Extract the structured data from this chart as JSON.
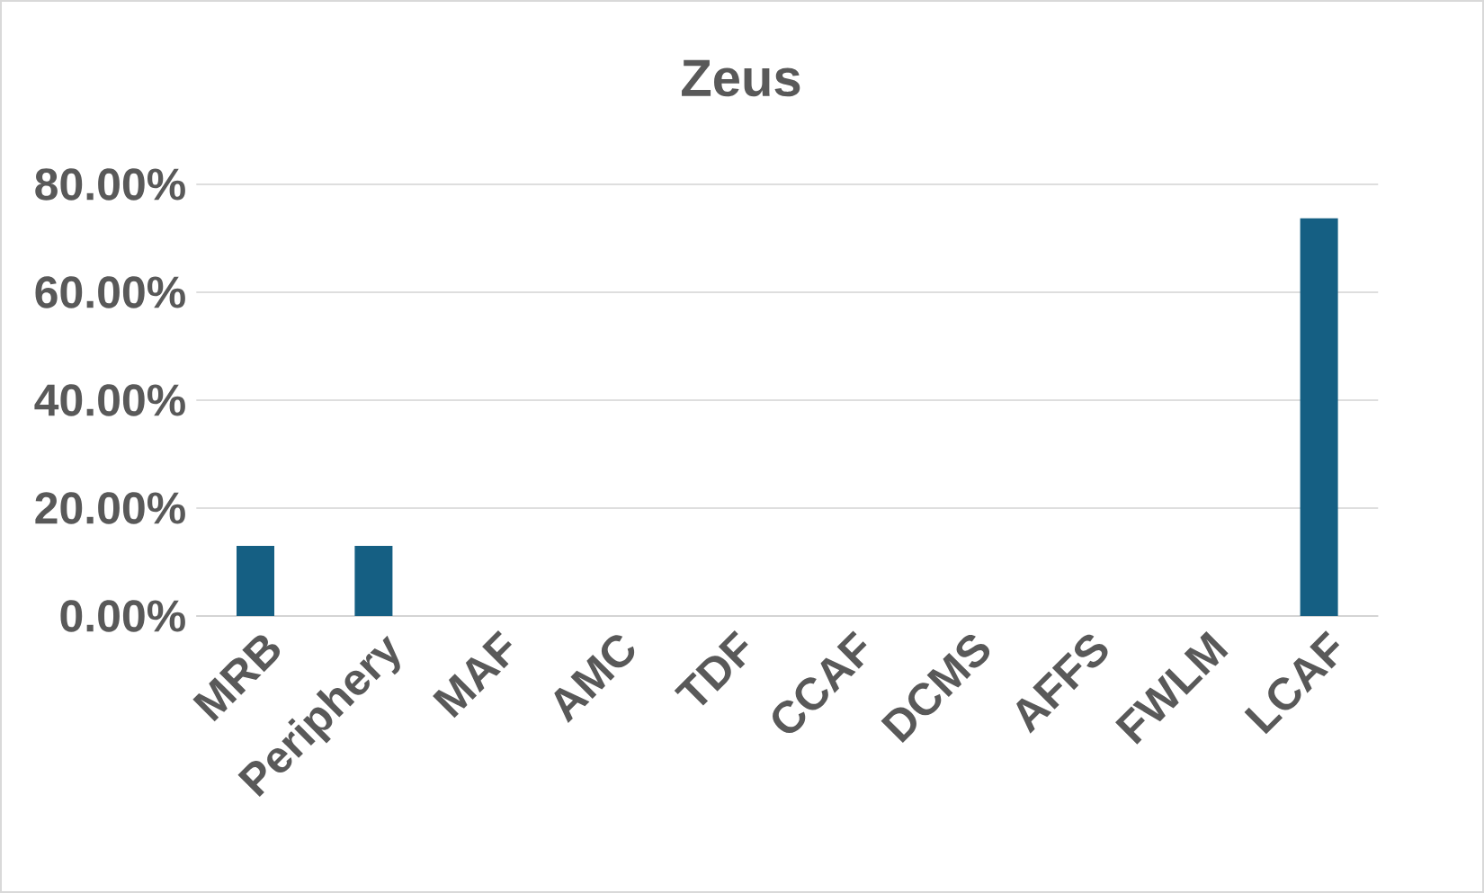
{
  "chart_data": {
    "type": "bar",
    "title": "Zeus",
    "categories": [
      "MRB",
      "Periphery",
      "MAF",
      "AMC",
      "TDF",
      "CCAF",
      "DCMS",
      "AFFS",
      "FWLM",
      "LCAF"
    ],
    "values": [
      13,
      13,
      0,
      0,
      0,
      0,
      0,
      0,
      0,
      73.7
    ],
    "color": "#155f83",
    "ylim": [
      0,
      80
    ],
    "yticks": [
      {
        "value": 0,
        "label": "0.00%"
      },
      {
        "value": 20,
        "label": "20.00%"
      },
      {
        "value": 40,
        "label": "40.00%"
      },
      {
        "value": 60,
        "label": "60.00%"
      },
      {
        "value": 80,
        "label": "80.00%"
      }
    ],
    "grid": "y"
  }
}
